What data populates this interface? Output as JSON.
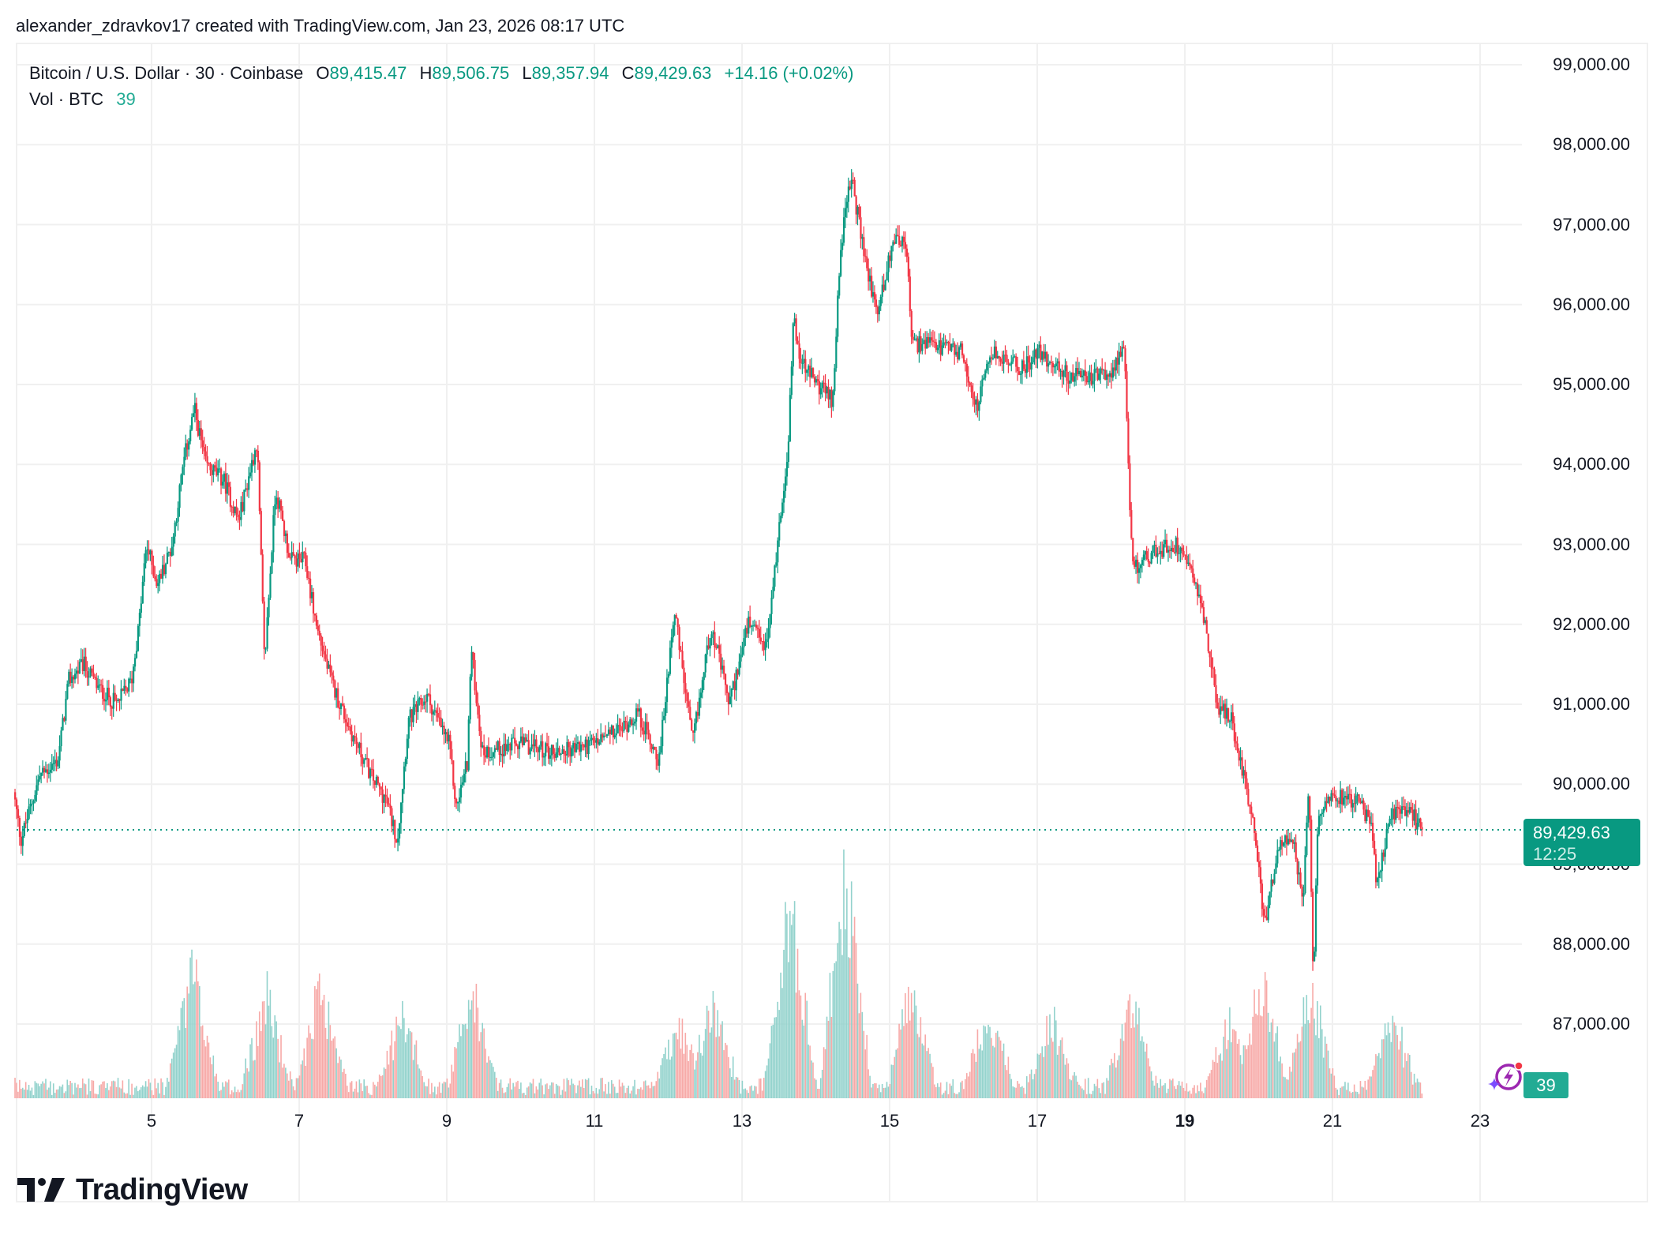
{
  "attribution": "alexander_zdravkov17 created with TradingView.com, Jan 23, 2026 08:17 UTC",
  "legend": {
    "symbol": "Bitcoin / U.S. Dollar · 30 · Coinbase",
    "open_label": "O",
    "open": "89,415.47",
    "high_label": "H",
    "high": "89,506.75",
    "low_label": "L",
    "low": "89,357.94",
    "close_label": "C",
    "close": "89,429.63",
    "change": "+14.16 (+0.02%)",
    "volume_label": "Vol · BTC",
    "volume": "39"
  },
  "price_tag": {
    "price": "89,429.63",
    "countdown": "12:25"
  },
  "volume_tag": "39",
  "logo": {
    "text": "TradingView",
    "icon": "tradingview-logo-icon"
  },
  "colors": {
    "up": "#089981",
    "down": "#F23645",
    "up_volume": "#92d2cc",
    "down_volume": "#f7a9a7",
    "grid": "#f0f0f0",
    "price_line": "#089981"
  },
  "chart_data": {
    "type": "candlestick",
    "title": "Bitcoin / U.S. Dollar · 30 · Coinbase",
    "interval": "30",
    "exchange": "Coinbase",
    "xlabel": "",
    "ylabel": "",
    "y_ticks": [
      "99,000.00",
      "98,000.00",
      "97,000.00",
      "96,000.00",
      "95,000.00",
      "94,000.00",
      "93,000.00",
      "92,000.00",
      "91,000.00",
      "90,000.00",
      "89,000.00",
      "88,000.00",
      "87,000.00"
    ],
    "y_tick_values": [
      99000,
      98000,
      97000,
      96000,
      95000,
      94000,
      93000,
      92000,
      91000,
      90000,
      89000,
      88000,
      87000
    ],
    "x_ticks": [
      {
        "label": "5",
        "day": 5,
        "bold": false
      },
      {
        "label": "7",
        "day": 7,
        "bold": false
      },
      {
        "label": "9",
        "day": 9,
        "bold": false
      },
      {
        "label": "11",
        "day": 11,
        "bold": false
      },
      {
        "label": "13",
        "day": 13,
        "bold": false
      },
      {
        "label": "15",
        "day": 15,
        "bold": false
      },
      {
        "label": "17",
        "day": 17,
        "bold": false
      },
      {
        "label": "19",
        "day": 19,
        "bold": true
      },
      {
        "label": "21",
        "day": 21,
        "bold": false
      },
      {
        "label": "23",
        "day": 23,
        "bold": false
      }
    ],
    "ylim": [
      86300,
      99300
    ],
    "grid": true,
    "last_price": 89429.63,
    "last_ohlc": {
      "open": 89415.47,
      "high": 89506.75,
      "low": 89357.94,
      "close": 89429.63,
      "change": 14.16,
      "change_pct": 0.02
    },
    "last_volume": 39,
    "price_path": [
      [
        3.15,
        89900
      ],
      [
        3.25,
        89300
      ],
      [
        3.5,
        90100
      ],
      [
        3.75,
        90300
      ],
      [
        3.9,
        91300
      ],
      [
        4.1,
        91500
      ],
      [
        4.3,
        91200
      ],
      [
        4.55,
        91000
      ],
      [
        4.75,
        91300
      ],
      [
        4.85,
        92000
      ],
      [
        4.95,
        93000
      ],
      [
        5.1,
        92500
      ],
      [
        5.3,
        93000
      ],
      [
        5.45,
        94000
      ],
      [
        5.6,
        94700
      ],
      [
        5.75,
        94000
      ],
      [
        6.0,
        93800
      ],
      [
        6.2,
        93300
      ],
      [
        6.45,
        94300
      ],
      [
        6.55,
        91500
      ],
      [
        6.7,
        93700
      ],
      [
        6.9,
        92800
      ],
      [
        7.1,
        92800
      ],
      [
        7.25,
        92000
      ],
      [
        7.45,
        91300
      ],
      [
        7.7,
        90700
      ],
      [
        8.0,
        90100
      ],
      [
        8.2,
        89800
      ],
      [
        8.35,
        89300
      ],
      [
        8.5,
        90800
      ],
      [
        8.75,
        91100
      ],
      [
        9.05,
        90500
      ],
      [
        9.15,
        89700
      ],
      [
        9.3,
        90300
      ],
      [
        9.35,
        91700
      ],
      [
        9.5,
        90400
      ],
      [
        10.0,
        90500
      ],
      [
        10.5,
        90400
      ],
      [
        11.0,
        90500
      ],
      [
        11.4,
        90700
      ],
      [
        11.6,
        90900
      ],
      [
        11.9,
        90300
      ],
      [
        12.1,
        92200
      ],
      [
        12.35,
        90500
      ],
      [
        12.6,
        92000
      ],
      [
        12.85,
        91000
      ],
      [
        13.1,
        92000
      ],
      [
        13.35,
        91700
      ],
      [
        13.5,
        93000
      ],
      [
        13.65,
        94300
      ],
      [
        13.72,
        95900
      ],
      [
        13.8,
        95300
      ],
      [
        14.05,
        95000
      ],
      [
        14.25,
        94800
      ],
      [
        14.35,
        96700
      ],
      [
        14.5,
        97600
      ],
      [
        14.7,
        96500
      ],
      [
        14.85,
        95900
      ],
      [
        15.1,
        96900
      ],
      [
        15.25,
        96700
      ],
      [
        15.32,
        95500
      ],
      [
        15.5,
        95500
      ],
      [
        16.0,
        95400
      ],
      [
        16.2,
        94700
      ],
      [
        16.4,
        95400
      ],
      [
        16.8,
        95200
      ],
      [
        17.05,
        95400
      ],
      [
        17.45,
        95100
      ],
      [
        17.95,
        95100
      ],
      [
        18.2,
        95400
      ],
      [
        18.27,
        93500
      ],
      [
        18.32,
        92700
      ],
      [
        18.6,
        92900
      ],
      [
        18.9,
        93000
      ],
      [
        19.1,
        92800
      ],
      [
        19.3,
        92000
      ],
      [
        19.45,
        91000
      ],
      [
        19.65,
        90800
      ],
      [
        19.85,
        90000
      ],
      [
        19.97,
        89400
      ],
      [
        20.1,
        88200
      ],
      [
        20.3,
        89300
      ],
      [
        20.5,
        89200
      ],
      [
        20.62,
        88500
      ],
      [
        20.7,
        90000
      ],
      [
        20.76,
        87500
      ],
      [
        20.82,
        89500
      ],
      [
        20.95,
        89900
      ],
      [
        21.35,
        89800
      ],
      [
        21.55,
        89500
      ],
      [
        21.62,
        88700
      ],
      [
        21.8,
        89600
      ],
      [
        22.05,
        89700
      ],
      [
        22.22,
        89430
      ]
    ],
    "volume_spikes": [
      {
        "day": 5.55,
        "height": 0.55
      },
      {
        "day": 6.55,
        "height": 0.45
      },
      {
        "day": 7.3,
        "height": 0.5
      },
      {
        "day": 8.4,
        "height": 0.35
      },
      {
        "day": 9.35,
        "height": 0.45
      },
      {
        "day": 12.15,
        "height": 0.3
      },
      {
        "day": 12.6,
        "height": 0.4
      },
      {
        "day": 13.65,
        "height": 0.85
      },
      {
        "day": 14.4,
        "height": 1.0
      },
      {
        "day": 15.3,
        "height": 0.45
      },
      {
        "day": 16.35,
        "height": 0.35
      },
      {
        "day": 17.2,
        "height": 0.3
      },
      {
        "day": 18.27,
        "height": 0.4
      },
      {
        "day": 19.6,
        "height": 0.3
      },
      {
        "day": 20.05,
        "height": 0.5
      },
      {
        "day": 20.7,
        "height": 0.45
      },
      {
        "day": 21.8,
        "height": 0.35
      }
    ]
  }
}
